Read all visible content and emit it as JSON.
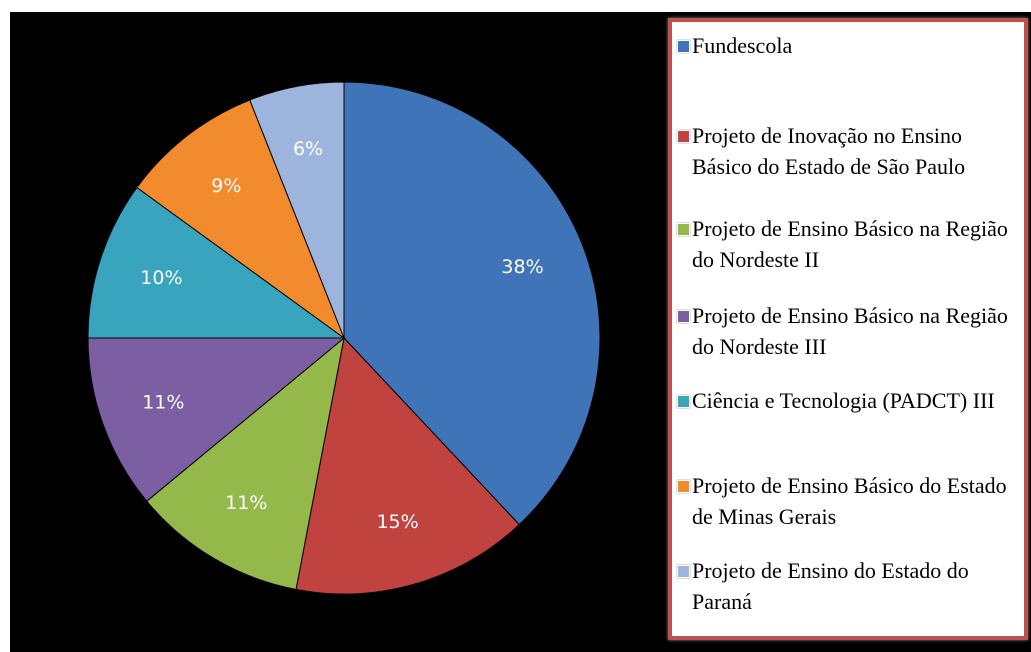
{
  "chart_data": {
    "type": "pie",
    "categories": [
      "Fundescola",
      "Projeto de Inovação no Ensino Básico do Estado de São Paulo",
      "Projeto de Ensino Básico na Região do Nordeste II",
      "Projeto de Ensino Básico na Região do Nordeste III",
      "Ciência e Tecnologia (PADCT) III",
      "Projeto de Ensino Básico do Estado de Minas Gerais",
      "Projeto de Ensino do Estado do Paraná"
    ],
    "values": [
      38,
      15,
      11,
      11,
      10,
      9,
      6
    ],
    "value_labels": [
      "38%",
      "15%",
      "11%",
      "11%",
      "10%",
      "9%",
      "6%"
    ],
    "colors": [
      "#3f74b9",
      "#c0433f",
      "#94b84a",
      "#7c5ea3",
      "#39a4bd",
      "#f28a2e",
      "#9db4dc"
    ],
    "legend": "right"
  }
}
